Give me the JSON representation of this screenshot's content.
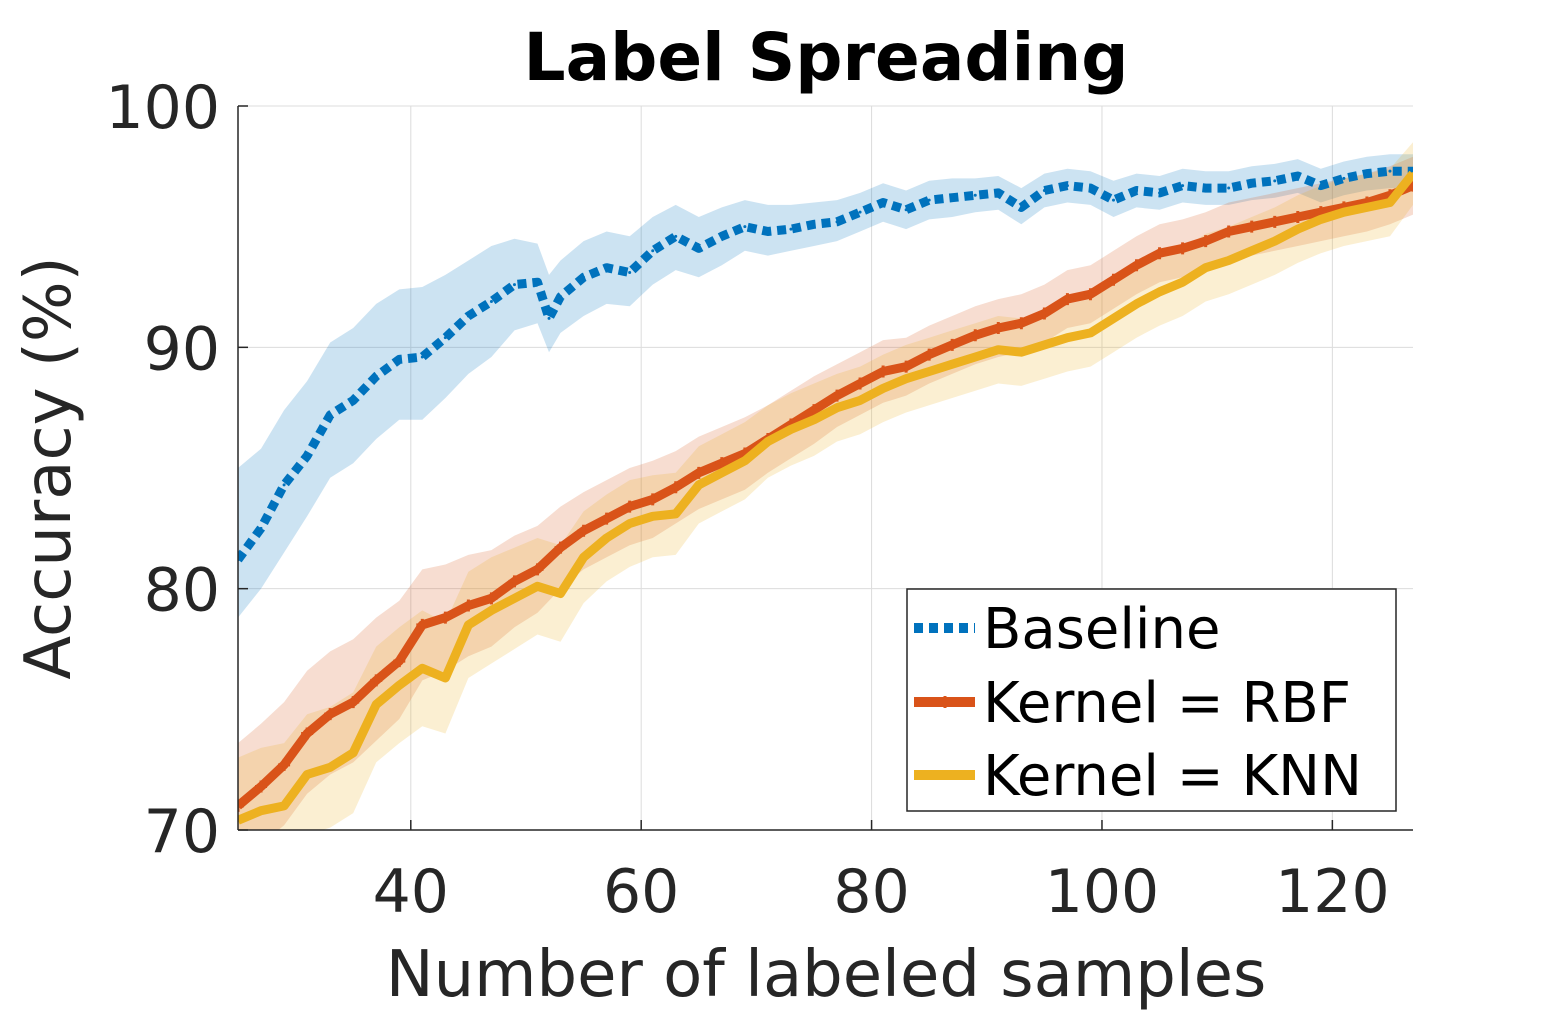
{
  "chart_data": {
    "type": "line",
    "title": "Label Spreading",
    "xlabel": "Number of labeled samples",
    "ylabel": "Accuracy (%)",
    "xlim": [
      25,
      127
    ],
    "ylim": [
      70,
      100
    ],
    "xticks": [
      40,
      60,
      80,
      100,
      120
    ],
    "yticks": [
      70,
      80,
      90,
      100
    ],
    "grid": true,
    "legend_position": "bottom-right",
    "series": [
      {
        "name": "Baseline",
        "color": "#0072BD",
        "style": "dotted",
        "x": [
          25,
          27,
          29,
          31,
          33,
          35,
          37,
          39,
          41,
          43,
          45,
          47,
          49,
          51,
          52,
          53,
          55,
          57,
          59,
          61,
          63,
          65,
          67,
          69,
          71,
          73,
          75,
          77,
          79,
          81,
          83,
          85,
          87,
          89,
          91,
          93,
          95,
          97,
          99,
          101,
          103,
          105,
          107,
          109,
          111,
          113,
          115,
          117,
          119,
          121,
          123,
          125,
          127
        ],
        "y": [
          81.2,
          82.5,
          84.3,
          85.5,
          87.2,
          87.8,
          88.8,
          89.5,
          89.6,
          90.4,
          91.3,
          91.9,
          92.6,
          92.7,
          91.2,
          92.1,
          92.9,
          93.3,
          93.1,
          94.0,
          94.6,
          94.1,
          94.6,
          95.0,
          94.8,
          94.9,
          95.1,
          95.2,
          95.6,
          96.0,
          95.7,
          96.1,
          96.2,
          96.3,
          96.4,
          95.8,
          96.5,
          96.7,
          96.6,
          96.1,
          96.5,
          96.4,
          96.7,
          96.6,
          96.6,
          96.8,
          96.9,
          97.1,
          96.7,
          97.0,
          97.2,
          97.3,
          97.3
        ],
        "lower": [
          78.8,
          80.0,
          81.5,
          83.0,
          84.6,
          85.2,
          86.2,
          87.0,
          87.0,
          87.9,
          88.9,
          89.6,
          90.7,
          91.0,
          89.8,
          90.6,
          91.3,
          91.8,
          91.7,
          92.6,
          93.2,
          92.9,
          93.4,
          94.0,
          93.8,
          94.0,
          94.2,
          94.4,
          94.8,
          95.2,
          94.9,
          95.3,
          95.4,
          95.6,
          95.7,
          95.1,
          95.8,
          96.0,
          95.9,
          95.4,
          95.8,
          95.7,
          96.0,
          95.9,
          95.9,
          96.1,
          96.2,
          96.4,
          96.0,
          96.3,
          96.5,
          96.6,
          96.6
        ],
        "upper": [
          85.0,
          85.8,
          87.4,
          88.6,
          90.2,
          90.8,
          91.8,
          92.4,
          92.5,
          93.0,
          93.6,
          94.2,
          94.5,
          94.3,
          93.0,
          93.6,
          94.4,
          94.8,
          94.6,
          95.4,
          95.9,
          95.4,
          95.8,
          96.1,
          95.9,
          95.9,
          96.0,
          96.1,
          96.4,
          96.8,
          96.5,
          96.9,
          97.0,
          97.0,
          97.1,
          96.6,
          97.2,
          97.4,
          97.3,
          96.9,
          97.2,
          97.1,
          97.4,
          97.3,
          97.3,
          97.5,
          97.6,
          97.8,
          97.4,
          97.7,
          97.9,
          98.0,
          98.0
        ]
      },
      {
        "name": "Kernel = RBF",
        "color": "#D95319",
        "style": "solid-plus",
        "x": [
          25,
          27,
          29,
          31,
          33,
          35,
          37,
          39,
          41,
          43,
          45,
          47,
          49,
          51,
          53,
          55,
          57,
          59,
          61,
          63,
          65,
          67,
          69,
          71,
          73,
          75,
          77,
          79,
          81,
          83,
          85,
          87,
          89,
          91,
          93,
          95,
          97,
          99,
          101,
          103,
          105,
          107,
          109,
          111,
          113,
          115,
          117,
          119,
          121,
          123,
          125,
          127
        ],
        "y": [
          71.0,
          71.8,
          72.7,
          74.0,
          74.8,
          75.3,
          76.2,
          77.0,
          78.5,
          78.8,
          79.3,
          79.6,
          80.3,
          80.8,
          81.7,
          82.4,
          82.9,
          83.4,
          83.7,
          84.2,
          84.8,
          85.2,
          85.6,
          86.2,
          86.8,
          87.4,
          88.0,
          88.5,
          89.0,
          89.2,
          89.7,
          90.1,
          90.5,
          90.8,
          91.0,
          91.4,
          92.0,
          92.2,
          92.8,
          93.4,
          93.9,
          94.1,
          94.4,
          94.8,
          95.0,
          95.2,
          95.4,
          95.6,
          95.8,
          96.0,
          96.3,
          96.7
        ],
        "lower": [
          68.5,
          69.4,
          70.2,
          71.5,
          72.3,
          72.8,
          73.7,
          74.6,
          76.2,
          76.6,
          77.2,
          77.6,
          78.4,
          79.0,
          80.0,
          80.8,
          81.3,
          81.8,
          82.1,
          82.7,
          83.3,
          83.7,
          84.1,
          84.8,
          85.4,
          86.0,
          86.7,
          87.2,
          87.7,
          88.0,
          88.5,
          88.9,
          89.3,
          89.6,
          89.8,
          90.2,
          90.8,
          91.0,
          91.6,
          92.2,
          92.7,
          92.9,
          93.2,
          93.6,
          93.8,
          94.0,
          94.2,
          94.4,
          94.6,
          94.8,
          95.1,
          95.5
        ],
        "upper": [
          73.6,
          74.4,
          75.3,
          76.6,
          77.4,
          77.9,
          78.8,
          79.5,
          80.8,
          81.0,
          81.4,
          81.6,
          82.2,
          82.6,
          83.4,
          84.0,
          84.5,
          85.0,
          85.3,
          85.7,
          86.3,
          86.7,
          87.1,
          87.6,
          88.2,
          88.8,
          89.3,
          89.8,
          90.3,
          90.4,
          90.9,
          91.3,
          91.7,
          92.0,
          92.2,
          92.6,
          93.2,
          93.4,
          94.0,
          94.6,
          95.1,
          95.3,
          95.6,
          96.0,
          96.2,
          96.4,
          96.6,
          96.8,
          97.0,
          97.2,
          97.5,
          97.9
        ]
      },
      {
        "name": "Kernel = KNN",
        "color": "#EDB120",
        "style": "solid",
        "x": [
          25,
          27,
          29,
          31,
          33,
          35,
          37,
          39,
          41,
          43,
          45,
          47,
          49,
          51,
          53,
          55,
          57,
          59,
          61,
          63,
          65,
          67,
          69,
          71,
          73,
          75,
          77,
          79,
          81,
          83,
          85,
          87,
          89,
          91,
          93,
          95,
          97,
          99,
          101,
          103,
          105,
          107,
          109,
          111,
          113,
          115,
          117,
          119,
          121,
          123,
          125,
          127
        ],
        "y": [
          70.4,
          70.8,
          71.0,
          72.3,
          72.6,
          73.2,
          75.2,
          76.0,
          76.7,
          76.3,
          78.5,
          79.1,
          79.6,
          80.1,
          79.8,
          81.3,
          82.1,
          82.7,
          83.0,
          83.1,
          84.3,
          84.8,
          85.3,
          86.1,
          86.6,
          87.0,
          87.5,
          87.8,
          88.3,
          88.7,
          89.0,
          89.3,
          89.6,
          89.9,
          89.8,
          90.1,
          90.4,
          90.6,
          91.2,
          91.8,
          92.3,
          92.7,
          93.3,
          93.6,
          94.0,
          94.4,
          94.9,
          95.3,
          95.6,
          95.8,
          96.0,
          97.2
        ],
        "lower": [
          67.8,
          68.2,
          68.4,
          69.8,
          70.1,
          70.7,
          72.8,
          73.6,
          74.3,
          74.0,
          76.3,
          76.9,
          77.5,
          78.1,
          77.8,
          79.4,
          80.3,
          80.9,
          81.3,
          81.4,
          82.7,
          83.2,
          83.7,
          84.6,
          85.1,
          85.5,
          86.1,
          86.4,
          86.9,
          87.3,
          87.6,
          87.9,
          88.2,
          88.5,
          88.4,
          88.7,
          89.0,
          89.2,
          89.8,
          90.4,
          90.9,
          91.3,
          91.9,
          92.2,
          92.6,
          93.0,
          93.5,
          93.9,
          94.2,
          94.4,
          94.6,
          95.9
        ],
        "upper": [
          73.0,
          73.4,
          73.6,
          74.8,
          75.1,
          75.7,
          77.6,
          78.4,
          79.1,
          78.6,
          80.7,
          81.3,
          81.7,
          82.1,
          81.8,
          83.2,
          83.9,
          84.5,
          84.7,
          84.8,
          85.9,
          86.4,
          86.9,
          87.6,
          88.1,
          88.5,
          88.9,
          89.2,
          89.7,
          90.1,
          90.4,
          90.7,
          91.0,
          91.3,
          91.2,
          91.5,
          91.8,
          92.0,
          92.6,
          93.2,
          93.7,
          94.1,
          94.7,
          95.0,
          95.4,
          95.8,
          96.3,
          96.7,
          97.0,
          97.2,
          97.4,
          98.5
        ]
      }
    ]
  }
}
